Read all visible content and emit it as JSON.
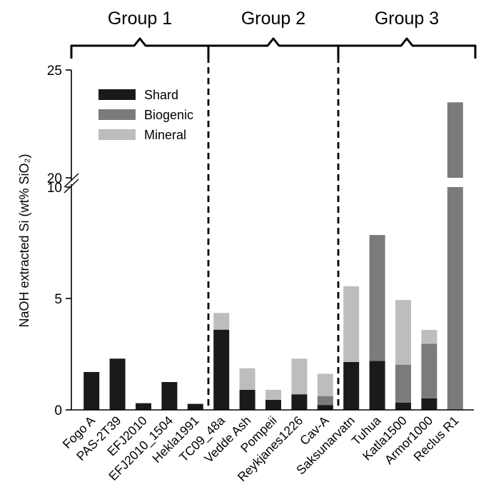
{
  "chart_data": {
    "type": "bar",
    "stacked": true,
    "ylabel": "NaOH extracted Si (wt% SiO₂)",
    "y_axis_break": [
      10,
      20
    ],
    "ylim": [
      0,
      25
    ],
    "y_ticks": [
      "0",
      "5",
      "10",
      "20",
      "25"
    ],
    "legend_position": "top-left",
    "grid": false,
    "categories": [
      "Fogo A",
      "PAS-2T39",
      "EFJ2010",
      "EFJ2010_1504",
      "Hekla1991",
      "TC09_48a",
      "Vedde Ash",
      "Pompeii",
      "Reykjanes1226",
      "Cav-A",
      "Saksunarvatn",
      "Tuhua",
      "Katla1500",
      "Armor1000",
      "Reclus R1"
    ],
    "series": [
      {
        "name": "Shard",
        "color": "#1a1a1a",
        "values": [
          1.7,
          2.3,
          0.3,
          1.25,
          0.27,
          3.6,
          0.9,
          0.45,
          0.7,
          0.22,
          2.15,
          2.2,
          0.33,
          0.52,
          0
        ]
      },
      {
        "name": "Biogenic",
        "color": "#7b7b7b",
        "values": [
          0,
          0,
          0,
          0,
          0,
          0,
          0,
          0,
          0,
          0.4,
          0,
          5.65,
          1.7,
          2.45,
          23.5
        ]
      },
      {
        "name": "Mineral",
        "color": "#bdbdbd",
        "values": [
          0,
          0,
          0,
          0,
          0,
          0.75,
          0.97,
          0.45,
          1.6,
          1.0,
          3.4,
          0,
          2.9,
          0.62,
          0
        ]
      }
    ],
    "groups": [
      {
        "label": "Group 1",
        "first": 0,
        "last": 4
      },
      {
        "label": "Group 2",
        "first": 5,
        "last": 9
      },
      {
        "label": "Group 3",
        "first": 10,
        "last": 14
      }
    ]
  }
}
